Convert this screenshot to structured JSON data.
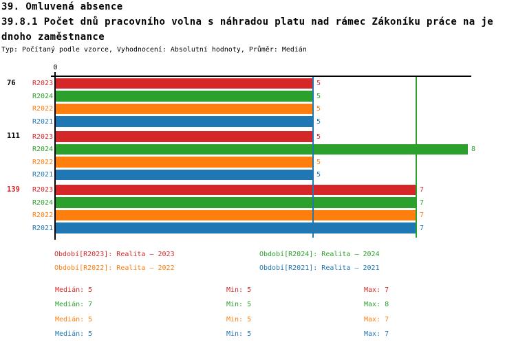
{
  "header": {
    "title_line1": "39. Omluvená absence",
    "title_line2": "39.8.1 Počet dnů pracovního volna s náhradou platu nad rámec Zákoníku práce na je",
    "title_line3": "dnoho zaměstnance",
    "meta": "Typ: Počítaný podle vzorce, Vyhodnocení: Absolutní hodnoty, Průměr: Medián"
  },
  "colors": {
    "r2023": "#d62728",
    "r2024": "#2ca02c",
    "r2022": "#ff7f0e",
    "r2021": "#1f77b4",
    "axis": "#000000"
  },
  "chart_data": {
    "type": "bar",
    "orientation": "horizontal",
    "title": "",
    "xlabel": "",
    "ylabel": "",
    "xlim": [
      0,
      8.1
    ],
    "origin_tick_label": "0",
    "grid": false,
    "categories": [
      "76",
      "111",
      "139"
    ],
    "category_label_colors": [
      "#000000",
      "#000000",
      "#d62728"
    ],
    "series": [
      {
        "name": "R2023",
        "color": "#d62728",
        "values": [
          5,
          5,
          7
        ]
      },
      {
        "name": "R2024",
        "color": "#2ca02c",
        "values": [
          5,
          8,
          7
        ]
      },
      {
        "name": "R2022",
        "color": "#ff7f0e",
        "values": [
          5,
          5,
          7
        ]
      },
      {
        "name": "R2021",
        "color": "#1f77b4",
        "values": [
          5,
          5,
          7
        ]
      }
    ],
    "median_lines": [
      {
        "series": "R2023",
        "value": 5,
        "color": "#d62728"
      },
      {
        "series": "R2022",
        "value": 5,
        "color": "#ff7f0e"
      },
      {
        "series": "R2021",
        "value": 5,
        "color": "#1f77b4"
      },
      {
        "series": "R2024",
        "value": 7,
        "color": "#2ca02c"
      }
    ]
  },
  "legend": [
    {
      "label": "Období[R2023]: Realita – 2023",
      "color": "#d62728"
    },
    {
      "label": "Období[R2024]: Realita – 2024",
      "color": "#2ca02c"
    },
    {
      "label": "Období[R2022]: Realita – 2022",
      "color": "#ff7f0e"
    },
    {
      "label": "Období[R2021]: Realita – 2021",
      "color": "#1f77b4"
    }
  ],
  "stats_labels": {
    "median": "Medián",
    "min": "Min",
    "max": "Max"
  },
  "stats": [
    {
      "series": "R2023",
      "color": "#d62728",
      "median": 5,
      "min": 5,
      "max": 7
    },
    {
      "series": "R2024",
      "color": "#2ca02c",
      "median": 7,
      "min": 5,
      "max": 8
    },
    {
      "series": "R2022",
      "color": "#ff7f0e",
      "median": 5,
      "min": 5,
      "max": 7
    },
    {
      "series": "R2021",
      "color": "#1f77b4",
      "median": 5,
      "min": 5,
      "max": 7
    }
  ]
}
